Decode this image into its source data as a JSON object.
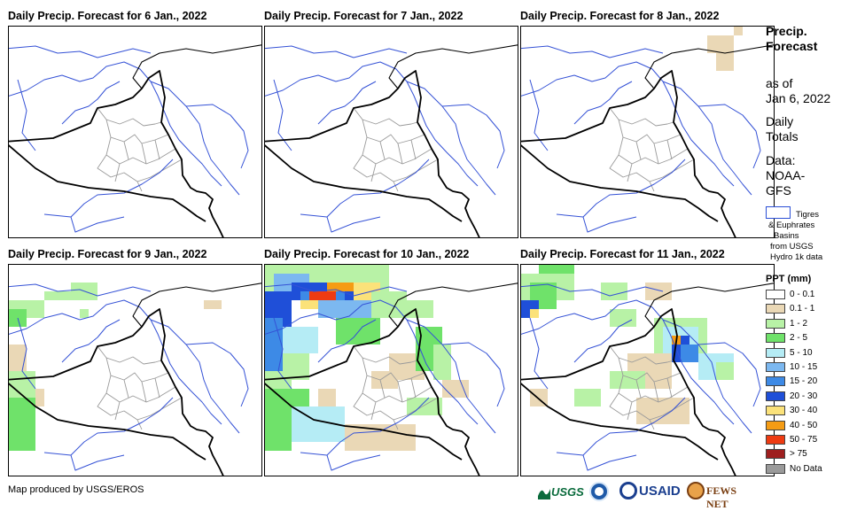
{
  "panels": [
    {
      "title": "Daily Precip. Forecast for 6 Jan., 2022"
    },
    {
      "title": "Daily Precip. Forecast for 7 Jan., 2022"
    },
    {
      "title": "Daily Precip. Forecast for 8 Jan., 2022"
    },
    {
      "title": "Daily Precip. Forecast for 9 Jan., 2022"
    },
    {
      "title": "Daily Precip. Forecast for 10 Jan., 2022"
    },
    {
      "title": "Daily Precip. Forecast for 11 Jan., 2022"
    }
  ],
  "sidebar": {
    "title_line1": "Precip.",
    "title_line2": "Forecast",
    "asof_line1": "as of",
    "asof_line2": "Jan 6, 2022",
    "totals_line1": "Daily",
    "totals_line2": "Totals",
    "data_line1": "Data:",
    "data_line2": "NOAA-",
    "data_line3": "GFS"
  },
  "basin_legend": {
    "line1": "Tigres",
    "line2": "& Euphrates",
    "line3": "Basins",
    "line4": "from USGS",
    "line5": "Hydro 1k data"
  },
  "ppt_legend": {
    "title": "PPT (mm)",
    "items": [
      {
        "label": "0 - 0.1",
        "color": "#ffffff"
      },
      {
        "label": "0.1 - 1",
        "color": "#ead8b6"
      },
      {
        "label": "1 - 2",
        "color": "#b8f2a6"
      },
      {
        "label": "2 - 5",
        "color": "#6fe26a"
      },
      {
        "label": "5 - 10",
        "color": "#b5ecf5"
      },
      {
        "label": "10 - 15",
        "color": "#7cb8f0"
      },
      {
        "label": "15 - 20",
        "color": "#3d8ae6"
      },
      {
        "label": "20 - 30",
        "color": "#1f4fd8"
      },
      {
        "label": "30 - 40",
        "color": "#fbe27a"
      },
      {
        "label": "40 - 50",
        "color": "#f59c14"
      },
      {
        "label": "50 - 75",
        "color": "#ee3b12"
      },
      {
        "label": "> 75",
        "color": "#9e1f1f"
      },
      {
        "label": "No Data",
        "color": "#9a9a9a"
      }
    ]
  },
  "footer": {
    "credit": "Map produced by USGS/EROS"
  },
  "logos": {
    "usgs": "USGS",
    "usaid": "USAID",
    "fewsnet": "FEWS NET"
  }
}
